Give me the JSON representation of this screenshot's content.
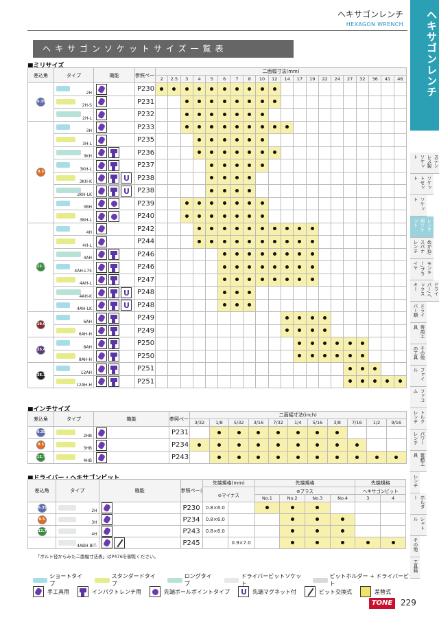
{
  "header": {
    "title_jp": "ヘキサゴンレンチ",
    "title_en": "HEXAGON WRENCH"
  },
  "banner": "ヘキサゴンソケットサイズ一覧表",
  "colors": {
    "blue": "#5c69b8",
    "orange": "#e26b1e",
    "green": "#2f8f3a",
    "teal": "#2ba0b5",
    "highlight": "#f8f0ad"
  },
  "metric": {
    "section": "■ミリサイズ",
    "head": {
      "drive": "差込角",
      "type": "タイプ",
      "func": "機能",
      "ref": "参照ページ",
      "size": "二面幅寸法(mm)"
    },
    "sizes": [
      "2",
      "2.5",
      "3",
      "4",
      "5",
      "6",
      "7",
      "8",
      "10",
      "12",
      "14",
      "17",
      "19",
      "22",
      "24",
      "27",
      "32",
      "36",
      "41",
      "46"
    ],
    "groups": [
      {
        "drive": "6.35",
        "color": "blue",
        "rows": [
          {
            "type": "2H",
            "icons": [
              "hand"
            ],
            "page": "P230",
            "f": [
              1,
              1,
              1,
              1,
              1,
              1,
              1,
              1,
              1,
              1,
              0,
              0,
              0,
              0,
              0,
              0,
              0,
              0,
              0,
              0
            ]
          },
          {
            "type": "2H-S",
            "icons": [
              "hand"
            ],
            "page": "P231",
            "f": [
              0,
              0,
              1,
              1,
              1,
              1,
              1,
              1,
              1,
              1,
              0,
              0,
              0,
              0,
              0,
              0,
              0,
              0,
              0,
              0
            ]
          },
          {
            "type": "2H-L",
            "icons": [
              "hand"
            ],
            "page": "P232",
            "f": [
              0,
              0,
              1,
              1,
              1,
              1,
              1,
              1,
              1,
              0,
              0,
              0,
              0,
              0,
              0,
              0,
              0,
              0,
              0,
              0
            ]
          }
        ]
      },
      {
        "drive": "9.5",
        "color": "orange",
        "rows": [
          {
            "type": "3H",
            "icons": [
              "hand"
            ],
            "page": "P233",
            "f": [
              0,
              0,
              1,
              1,
              1,
              1,
              1,
              1,
              1,
              1,
              1,
              0,
              0,
              0,
              0,
              0,
              0,
              0,
              0,
              0
            ]
          },
          {
            "type": "3H-L",
            "icons": [
              "hand"
            ],
            "page": "P235",
            "f": [
              0,
              0,
              0,
              1,
              1,
              1,
              1,
              1,
              1,
              0,
              0,
              0,
              0,
              0,
              0,
              0,
              0,
              0,
              0,
              0
            ]
          },
          {
            "type": "3KH",
            "icons": [
              "hand",
              "impact"
            ],
            "page": "P236",
            "f": [
              0,
              0,
              0,
              1,
              1,
              1,
              1,
              1,
              1,
              1,
              0,
              0,
              0,
              0,
              0,
              0,
              0,
              0,
              0,
              0
            ]
          },
          {
            "type": "3KH-L",
            "icons": [
              "hand",
              "impact"
            ],
            "page": "P237",
            "f": [
              0,
              0,
              0,
              0,
              1,
              1,
              1,
              1,
              1,
              0,
              0,
              0,
              0,
              0,
              0,
              0,
              0,
              0,
              0,
              0
            ]
          },
          {
            "type": "3KH-K",
            "icons": [
              "hand",
              "impact",
              "mag"
            ],
            "page": "P238",
            "f": [
              0,
              0,
              0,
              0,
              1,
              1,
              1,
              1,
              0,
              0,
              0,
              0,
              0,
              0,
              0,
              0,
              0,
              0,
              0,
              0
            ]
          },
          {
            "type": "3KH-LK",
            "icons": [
              "hand",
              "impact",
              "mag"
            ],
            "page": "P238",
            "f": [
              0,
              0,
              0,
              0,
              1,
              1,
              1,
              1,
              0,
              0,
              0,
              0,
              0,
              0,
              0,
              0,
              0,
              0,
              0,
              0
            ]
          },
          {
            "type": "3BH",
            "icons": [
              "hand",
              "ball"
            ],
            "page": "P239",
            "f": [
              0,
              0,
              1,
              1,
              1,
              1,
              1,
              1,
              1,
              0,
              0,
              0,
              0,
              0,
              0,
              0,
              0,
              0,
              0,
              0
            ]
          },
          {
            "type": "3BH-L",
            "icons": [
              "hand",
              "ball"
            ],
            "page": "P240",
            "f": [
              0,
              0,
              1,
              1,
              1,
              1,
              1,
              1,
              1,
              0,
              0,
              0,
              0,
              0,
              0,
              0,
              0,
              0,
              0,
              0
            ]
          }
        ]
      },
      {
        "drive": "12.7",
        "color": "green",
        "rows": [
          {
            "type": "4H",
            "icons": [
              "hand"
            ],
            "page": "P242",
            "f": [
              0,
              0,
              0,
              1,
              1,
              1,
              1,
              1,
              1,
              1,
              1,
              1,
              1,
              0,
              0,
              0,
              0,
              0,
              0,
              0
            ]
          },
          {
            "type": "4H-L",
            "icons": [
              "hand"
            ],
            "page": "P244",
            "f": [
              0,
              0,
              0,
              1,
              1,
              1,
              1,
              1,
              1,
              1,
              1,
              1,
              1,
              0,
              0,
              0,
              0,
              0,
              0,
              0
            ]
          },
          {
            "type": "4AH",
            "icons": [
              "hand",
              "impact"
            ],
            "page": "P246",
            "f": [
              0,
              0,
              0,
              0,
              0,
              1,
              1,
              1,
              1,
              1,
              1,
              1,
              1,
              0,
              0,
              0,
              0,
              0,
              0,
              0
            ]
          },
          {
            "type": "4AH-L75",
            "icons": [
              "hand",
              "impact"
            ],
            "page": "P246",
            "f": [
              0,
              0,
              0,
              0,
              0,
              1,
              1,
              1,
              1,
              1,
              1,
              1,
              1,
              0,
              0,
              0,
              0,
              0,
              0,
              0
            ]
          },
          {
            "type": "4AH-L",
            "icons": [
              "hand",
              "impact"
            ],
            "page": "P247",
            "f": [
              0,
              0,
              0,
              0,
              0,
              1,
              1,
              1,
              1,
              1,
              1,
              1,
              1,
              0,
              0,
              0,
              0,
              0,
              0,
              0
            ]
          },
          {
            "type": "4AH-K",
            "icons": [
              "hand",
              "impact",
              "mag"
            ],
            "page": "P248",
            "f": [
              0,
              0,
              0,
              0,
              0,
              1,
              1,
              1,
              0,
              0,
              0,
              0,
              0,
              0,
              0,
              0,
              0,
              0,
              0,
              0
            ]
          },
          {
            "type": "4AH-LK",
            "icons": [
              "hand",
              "impact",
              "mag"
            ],
            "page": "P248",
            "f": [
              0,
              0,
              0,
              0,
              0,
              1,
              1,
              1,
              0,
              0,
              0,
              0,
              0,
              0,
              0,
              0,
              0,
              0,
              0,
              0
            ]
          }
        ]
      },
      {
        "drive": "19.0",
        "color": "drkred",
        "rows": [
          {
            "type": "6AH",
            "icons": [
              "hand",
              "impact"
            ],
            "page": "P249",
            "f": [
              0,
              0,
              0,
              0,
              0,
              0,
              0,
              0,
              0,
              0,
              1,
              1,
              1,
              1,
              0,
              0,
              0,
              0,
              0,
              0
            ]
          },
          {
            "type": "6AH-H",
            "icons": [
              "hand",
              "impact"
            ],
            "page": "P249",
            "f": [
              0,
              0,
              0,
              0,
              0,
              0,
              0,
              0,
              0,
              0,
              1,
              1,
              1,
              1,
              0,
              0,
              0,
              0,
              0,
              0
            ]
          }
        ]
      },
      {
        "drive": "25.4",
        "color": "purple",
        "rows": [
          {
            "type": "8AH",
            "icons": [
              "hand",
              "impact"
            ],
            "page": "P250",
            "f": [
              0,
              0,
              0,
              0,
              0,
              0,
              0,
              0,
              0,
              0,
              0,
              1,
              1,
              1,
              1,
              1,
              1,
              0,
              0,
              0
            ]
          },
          {
            "type": "8AH-H",
            "icons": [
              "hand",
              "impact"
            ],
            "page": "P250",
            "f": [
              0,
              0,
              0,
              0,
              0,
              0,
              0,
              0,
              0,
              0,
              0,
              1,
              1,
              1,
              1,
              1,
              1,
              0,
              0,
              0
            ]
          }
        ]
      },
      {
        "drive": "38.1",
        "color": "dark",
        "rows": [
          {
            "type": "12AH",
            "icons": [
              "hand",
              "impact"
            ],
            "page": "P251",
            "f": [
              0,
              0,
              0,
              0,
              0,
              0,
              0,
              0,
              0,
              0,
              0,
              0,
              0,
              0,
              0,
              1,
              1,
              1,
              0,
              0
            ]
          },
          {
            "type": "12AH-H",
            "icons": [
              "hand",
              "impact"
            ],
            "page": "P251",
            "f": [
              0,
              0,
              0,
              0,
              0,
              0,
              0,
              0,
              0,
              0,
              0,
              0,
              0,
              0,
              0,
              1,
              1,
              1,
              1,
              1
            ]
          }
        ]
      }
    ]
  },
  "inch": {
    "section": "■インチサイズ",
    "head": {
      "drive": "差込角",
      "type": "タイプ",
      "func": "機能",
      "ref": "参照ページ",
      "size": "二面幅寸法(inch)"
    },
    "sizes": [
      "3/32",
      "1/8",
      "5/32",
      "3/16",
      "7/32",
      "1/4",
      "5/16",
      "3/8",
      "7/16",
      "1/2",
      "9/16"
    ],
    "rows": [
      {
        "drive": "6.35",
        "color": "blue",
        "type": "2HB",
        "icons": [
          "hand"
        ],
        "page": "P231",
        "f": [
          0,
          1,
          1,
          1,
          1,
          1,
          1,
          1,
          0,
          0,
          0
        ]
      },
      {
        "drive": "9.5",
        "color": "orange",
        "type": "3HB",
        "icons": [
          "hand"
        ],
        "page": "P234",
        "f": [
          1,
          1,
          1,
          1,
          1,
          1,
          1,
          1,
          1,
          0,
          0
        ]
      },
      {
        "drive": "12.7",
        "color": "green",
        "type": "4HB",
        "icons": [
          "hand"
        ],
        "page": "P243",
        "f": [
          0,
          1,
          1,
          1,
          1,
          1,
          1,
          1,
          1,
          1,
          1
        ]
      }
    ]
  },
  "bit": {
    "section": "■ドライバー・ヘキサゴンビット",
    "head": {
      "drive": "差込角",
      "type": "タイプ",
      "func": "機能",
      "ref": "参照ページ",
      "spec": "先端規格(mm)",
      "minus": "⊖マイナス",
      "plus_spec": "先端規格",
      "plus": "⊕プラス",
      "hex_spec": "先端規格",
      "hex": "ヘキサゴンビット",
      "no1": "No.1",
      "no2": "No.2",
      "no3": "No.3",
      "no4": "No.4",
      "h3": "3",
      "h4": "4"
    },
    "rows": [
      {
        "drive": "6.35",
        "color": "blue",
        "type": "2H",
        "icons": [
          "hand"
        ],
        "page": "P230",
        "m1": "0.8×6.0",
        "m2": "",
        "f": [
          1,
          1,
          1,
          0,
          0,
          0
        ]
      },
      {
        "drive": "9.5",
        "color": "orange",
        "type": "3H",
        "icons": [
          "hand"
        ],
        "page": "P234",
        "m1": "0.8×6.0",
        "m2": "",
        "f": [
          0,
          1,
          1,
          1,
          0,
          0
        ]
      },
      {
        "drive": "12.7",
        "color": "green",
        "type": "4H",
        "icons": [
          "hand"
        ],
        "page": "P243",
        "m1": "0.8×6.0",
        "m2": "",
        "f": [
          0,
          1,
          1,
          1,
          0,
          0
        ]
      },
      {
        "drive": "",
        "color": "",
        "type": "4ABH BIT-",
        "icons": [
          "hand",
          "bit"
        ],
        "page": "P245",
        "m1": "",
        "m2": "0.9×7.0",
        "f": [
          0,
          1,
          1,
          1,
          1,
          1
        ]
      }
    ]
  },
  "note": "「ボルト径からみた二面幅寸法表」はP476を御覧ください。",
  "legend": [
    {
      "icon": "short-shape",
      "label": "ショートタイプ"
    },
    {
      "icon": "standard-shape",
      "label": "スタンダードタイプ"
    },
    {
      "icon": "long-shape",
      "label": "ロングタイプ"
    },
    {
      "icon": "driver-bit-socket",
      "label": "ドライバービットソケット"
    },
    {
      "icon": "bit-holder",
      "label": "ビットホルダー + ドライバービット"
    }
  ],
  "legend2": [
    {
      "icon": "hand",
      "label": "手工具用"
    },
    {
      "icon": "impact",
      "label": "インパクトレンチ用"
    },
    {
      "icon": "ball",
      "label": "先端ボールポイントタイプ"
    },
    {
      "icon": "mag",
      "label": "先端マグネット付"
    },
    {
      "icon": "bit",
      "label": "ビット交換式"
    },
    {
      "icon": "replace",
      "label": "差替式"
    }
  ],
  "tabs": {
    "active": "ヘキサゴンレンチ",
    "items": [
      "ステンレス製ソケット",
      "ソケットセット",
      "ソケット",
      "レンチ用ソケット",
      "めがね/スパナレンチ",
      "モンキー/プライヤ",
      "ドライバー/ヘックスキー",
      "ドライバー類",
      "専用工具",
      "その他の工具",
      "ファイル",
      "ファコム",
      "トルクレンチ",
      "パワーレンチ",
      "電動工具",
      "レンチ",
      "ホルダー",
      "シャトル",
      "その他",
      "工具箱"
    ]
  },
  "footer": {
    "brand": "TONE",
    "page": "229"
  }
}
